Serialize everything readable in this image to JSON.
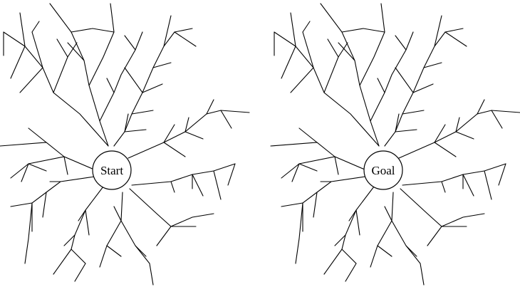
{
  "panels": [
    {
      "center_label": "Start"
    },
    {
      "center_label": "Goal"
    }
  ],
  "colors": {
    "stroke": "#000000",
    "background": "#ffffff"
  }
}
